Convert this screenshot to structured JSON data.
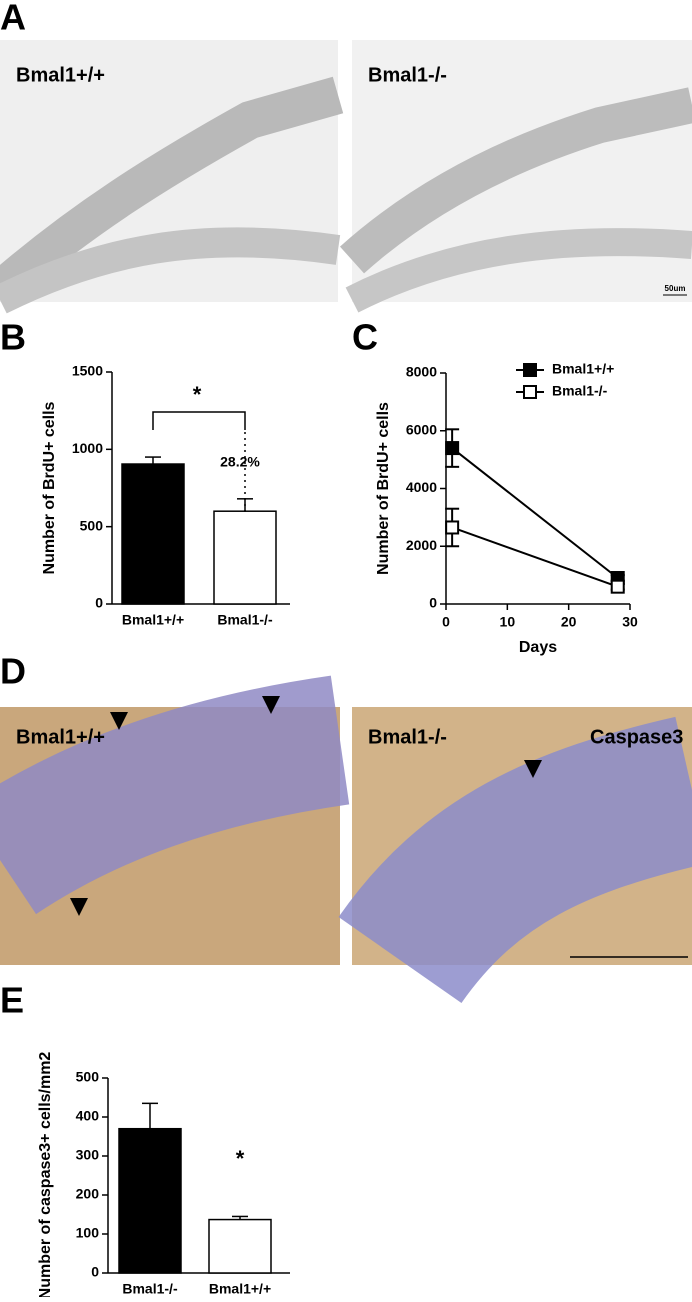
{
  "figure": {
    "panel_labels": [
      "A",
      "B",
      "C",
      "D",
      "E"
    ],
    "panel_a": {
      "left_label": "Bmal1+/+",
      "right_label": "Bmal1-/-",
      "scale_label": "50um"
    },
    "panel_d": {
      "left_label": "Bmal1+/+",
      "right_label": "Bmal1-/-",
      "stain_label": "Caspase3"
    }
  },
  "chart_data": [
    {
      "type": "bar",
      "ylabel": "Number of BrdU+ cells",
      "categories": [
        "Bmal1+/+",
        "Bmal1-/-"
      ],
      "values": [
        905,
        600
      ],
      "errors": [
        45,
        80
      ],
      "colors": [
        "#000000",
        "#ffffff"
      ],
      "ylim": [
        0,
        1500
      ],
      "yticks": [
        0,
        500,
        1000,
        1500
      ],
      "annotations": [
        "*",
        "28.2%"
      ]
    },
    {
      "type": "line",
      "ylabel": "Number of BrdU+ cells",
      "xlabel": "Days",
      "x": [
        1,
        28
      ],
      "xlim": [
        0,
        30
      ],
      "xticks": [
        0,
        10,
        20,
        30
      ],
      "ylim": [
        0,
        8000
      ],
      "yticks": [
        0,
        2000,
        4000,
        6000,
        8000
      ],
      "legend": "upper right",
      "series": [
        {
          "name": "Bmal1+/+",
          "color": "#000000",
          "fill": "#000000",
          "values": [
            5400,
            900
          ],
          "errors": [
            650,
            100
          ]
        },
        {
          "name": "Bmal1-/-",
          "color": "#000000",
          "fill": "#ffffff",
          "values": [
            2650,
            600
          ],
          "errors": [
            650,
            100
          ]
        }
      ]
    },
    {
      "type": "bar",
      "ylabel": "Number of caspase3+ cells/mm2",
      "categories": [
        "Bmal1-/-",
        "Bmal1+/+"
      ],
      "values": [
        370,
        137
      ],
      "errors": [
        65,
        8
      ],
      "colors": [
        "#000000",
        "#ffffff"
      ],
      "ylim": [
        0,
        500
      ],
      "yticks": [
        0,
        100,
        200,
        300,
        400,
        500
      ],
      "annotations": [
        "*"
      ]
    }
  ]
}
